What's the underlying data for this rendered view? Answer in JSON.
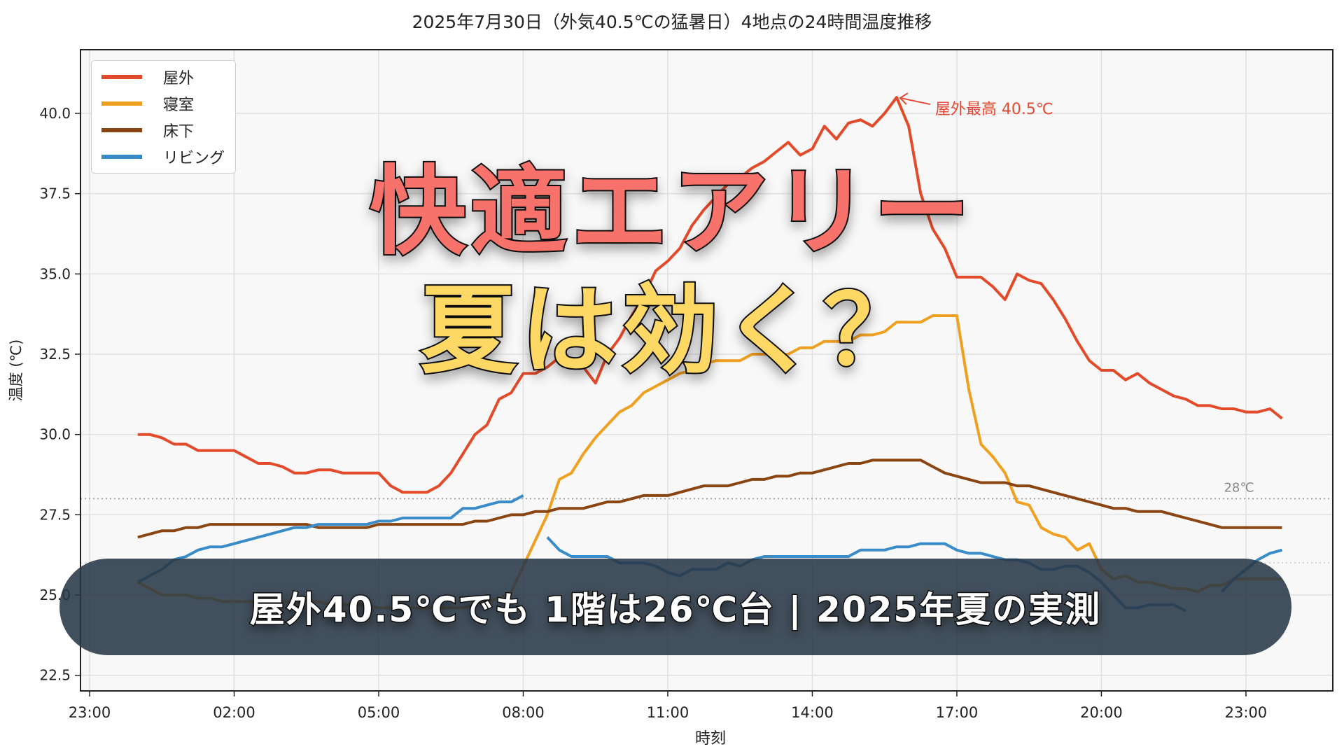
{
  "chart_data": {
    "type": "line",
    "title": "2025年7月30日（外気40.5℃の猛暑日）4地点の24時間温度推移",
    "xlabel": "時刻",
    "ylabel": "温度 (℃)",
    "ylim": [
      22.2,
      42.2
    ],
    "xlim_hours_from_2300": [
      -0.2,
      26.0
    ],
    "x_ticks": [
      "23:00",
      "02:00",
      "05:00",
      "08:00",
      "11:00",
      "14:00",
      "17:00",
      "20:00",
      "23:00"
    ],
    "y_ticks": [
      "22.5",
      "25.0",
      "27.5",
      "30.0",
      "32.5",
      "35.0",
      "37.5",
      "40.0"
    ],
    "grid": true,
    "legend_position": "upper left",
    "x_interval_minutes": 15,
    "x_start": "00:00",
    "x_end": "23:45",
    "reference_lines": [
      {
        "value": 28,
        "label": "28℃",
        "style": "dotted",
        "color": "#999999"
      },
      {
        "value": 26,
        "label": "",
        "style": "dotted",
        "color": "#cccccc"
      }
    ],
    "annotations": [
      {
        "text": "屋外最高 40.5℃",
        "x": "15:45",
        "y": 40.5,
        "color": "#E34A33",
        "arrow": true
      }
    ],
    "series": [
      {
        "name": "屋外",
        "color": "#E34A2A",
        "values": [
          30.0,
          30.0,
          29.9,
          29.7,
          29.7,
          29.5,
          29.5,
          29.5,
          29.5,
          29.3,
          29.1,
          29.1,
          29.0,
          28.8,
          28.8,
          28.9,
          28.9,
          28.8,
          28.8,
          28.8,
          28.8,
          28.4,
          28.2,
          28.2,
          28.2,
          28.4,
          28.8,
          29.4,
          30.0,
          30.3,
          31.1,
          31.3,
          31.9,
          31.9,
          32.1,
          32.4,
          32.3,
          32.1,
          31.6,
          32.5,
          33.0,
          33.7,
          34.3,
          35.1,
          35.4,
          35.8,
          36.5,
          37.0,
          37.4,
          37.8,
          38.0,
          38.3,
          38.5,
          38.8,
          39.1,
          38.7,
          38.9,
          39.6,
          39.2,
          39.7,
          39.8,
          39.6,
          40.0,
          40.5,
          39.6,
          37.5,
          36.4,
          35.8,
          34.9,
          34.9,
          34.9,
          34.6,
          34.2,
          35.0,
          34.8,
          34.7,
          34.2,
          33.6,
          32.9,
          32.3,
          32.0,
          32.0,
          31.7,
          31.9,
          31.6,
          31.4,
          31.2,
          31.1,
          30.9,
          30.9,
          30.8,
          30.8,
          30.7,
          30.7,
          30.8,
          30.5
        ]
      },
      {
        "name": "寝室",
        "color": "#F0A020",
        "values": [
          25.4,
          25.2,
          25.0,
          25.0,
          25.0,
          24.9,
          24.9,
          24.8,
          24.8,
          24.8,
          24.8,
          24.8,
          24.8,
          24.8,
          24.8,
          24.8,
          24.7,
          24.7,
          24.7,
          24.7,
          24.6,
          24.6,
          24.6,
          24.6,
          24.6,
          24.6,
          24.6,
          24.6,
          24.7,
          24.8,
          24.9,
          25.1,
          25.9,
          26.7,
          27.5,
          28.6,
          28.8,
          29.4,
          29.9,
          30.3,
          30.7,
          30.9,
          31.3,
          31.5,
          31.7,
          31.9,
          32.0,
          32.2,
          32.3,
          32.3,
          32.3,
          32.5,
          32.5,
          32.5,
          32.5,
          32.7,
          32.7,
          32.9,
          32.9,
          32.9,
          33.1,
          33.1,
          33.2,
          33.5,
          33.5,
          33.5,
          33.7,
          33.7,
          33.7,
          31.4,
          29.7,
          29.3,
          28.8,
          27.9,
          27.8,
          27.1,
          26.9,
          26.8,
          26.4,
          26.6,
          25.8,
          25.5,
          25.6,
          25.4,
          25.4,
          25.3,
          25.2,
          25.2,
          25.1,
          25.3,
          25.3,
          25.5,
          25.5,
          25.5,
          25.5,
          25.5
        ]
      },
      {
        "name": "床下",
        "color": "#8B4513",
        "values": [
          26.8,
          26.9,
          27.0,
          27.0,
          27.1,
          27.1,
          27.2,
          27.2,
          27.2,
          27.2,
          27.2,
          27.2,
          27.2,
          27.2,
          27.2,
          27.1,
          27.1,
          27.1,
          27.1,
          27.1,
          27.2,
          27.2,
          27.2,
          27.2,
          27.2,
          27.2,
          27.2,
          27.2,
          27.3,
          27.3,
          27.4,
          27.5,
          27.5,
          27.6,
          27.6,
          27.7,
          27.7,
          27.7,
          27.8,
          27.9,
          27.9,
          28.0,
          28.1,
          28.1,
          28.1,
          28.2,
          28.3,
          28.4,
          28.4,
          28.4,
          28.5,
          28.6,
          28.6,
          28.7,
          28.7,
          28.8,
          28.8,
          28.9,
          29.0,
          29.1,
          29.1,
          29.2,
          29.2,
          29.2,
          29.2,
          29.2,
          29.0,
          28.8,
          28.7,
          28.6,
          28.5,
          28.5,
          28.5,
          28.4,
          28.4,
          28.3,
          28.2,
          28.1,
          28.0,
          27.9,
          27.8,
          27.7,
          27.7,
          27.6,
          27.6,
          27.6,
          27.5,
          27.4,
          27.3,
          27.2,
          27.1,
          27.1,
          27.1,
          27.1,
          27.1,
          27.1
        ]
      },
      {
        "name": "リビング",
        "color": "#3A8CC8",
        "values": [
          25.4,
          25.6,
          25.8,
          26.1,
          26.2,
          26.4,
          26.5,
          26.5,
          26.6,
          26.7,
          26.8,
          26.9,
          27.0,
          27.1,
          27.1,
          27.2,
          27.2,
          27.2,
          27.2,
          27.2,
          27.3,
          27.3,
          27.4,
          27.4,
          27.4,
          27.4,
          27.4,
          27.7,
          27.7,
          27.8,
          27.9,
          27.9,
          28.1,
          null,
          26.8,
          26.4,
          26.2,
          26.2,
          26.2,
          26.2,
          26.0,
          26.0,
          26.0,
          25.9,
          25.7,
          25.6,
          25.8,
          25.8,
          25.8,
          26.0,
          25.9,
          26.1,
          26.2,
          26.2,
          26.2,
          26.2,
          26.2,
          26.2,
          26.2,
          26.2,
          26.4,
          26.4,
          26.4,
          26.5,
          26.5,
          26.6,
          26.6,
          26.6,
          26.4,
          26.3,
          26.3,
          26.2,
          26.1,
          26.1,
          26.0,
          25.8,
          25.8,
          25.9,
          25.9,
          25.7,
          25.4,
          25.0,
          24.6,
          24.6,
          24.7,
          24.7,
          24.7,
          24.5,
          null,
          null,
          25.1,
          25.5,
          25.8,
          26.1,
          26.3,
          26.4
        ]
      }
    ]
  },
  "title": "2025年7月30日（外気40.5℃の猛暑日）4地点の24時間温度推移",
  "axes": {
    "ylabel": "温度 (℃)",
    "xlabel": "時刻",
    "ref_label_28": "28℃",
    "annotation": "屋外最高 40.5℃"
  },
  "legend": [
    {
      "label": "屋外",
      "color": "#E34A2A"
    },
    {
      "label": "寝室",
      "color": "#F0A020"
    },
    {
      "label": "床下",
      "color": "#8B4513"
    },
    {
      "label": "リビング",
      "color": "#3A8CC8"
    }
  ],
  "overlay": {
    "headline_line1": "快適エアリー",
    "headline_line2": "夏は効く？",
    "headline_line1_color": "#F8726C",
    "headline_line2_color": "#FDD865",
    "banner_text": "屋外40.5℃でも 1階は26℃台 | 2025年夏の実測",
    "banner_color": "#2C3E50"
  }
}
